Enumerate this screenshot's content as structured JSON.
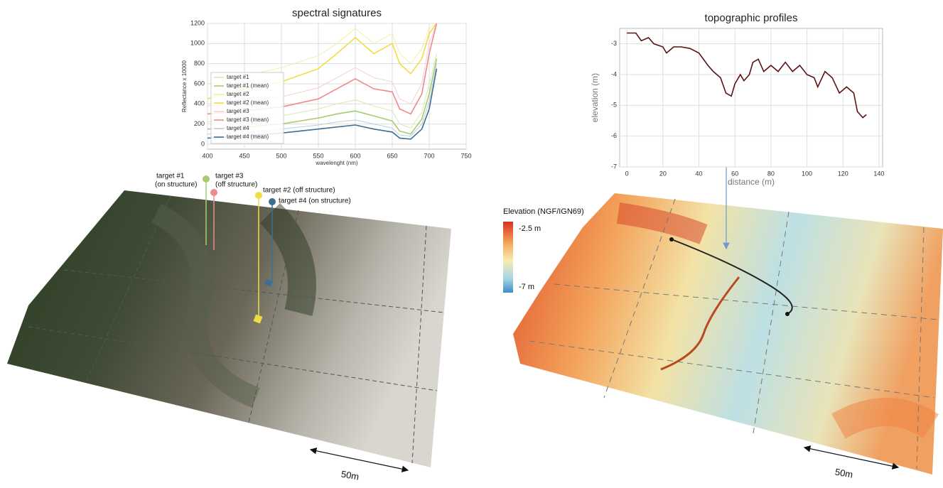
{
  "chart_data": [
    {
      "type": "line",
      "title": "spectral signatures",
      "x_label": "wavelenght (nm)",
      "y_label": "Reflectance x 10000",
      "x": [
        400,
        450,
        500,
        550,
        575,
        600,
        625,
        650,
        660,
        675,
        690,
        700,
        710
      ],
      "series": [
        {
          "name": "target #1",
          "color": "#d9e8b8",
          "values": [
            220,
            240,
            280,
            350,
            400,
            440,
            380,
            330,
            200,
            160,
            320,
            600,
            900
          ]
        },
        {
          "name": "target #1 (mean)",
          "color": "#a9cc6e",
          "values": [
            150,
            170,
            200,
            260,
            300,
            330,
            280,
            230,
            130,
            100,
            250,
            500,
            850
          ]
        },
        {
          "name": "target #2",
          "color": "#f6eca8",
          "values": [
            600,
            680,
            760,
            880,
            1000,
            1150,
            1000,
            1100,
            900,
            800,
            950,
            1150,
            1200
          ]
        },
        {
          "name": "target #2 (mean)",
          "color": "#f2dc45",
          "values": [
            450,
            550,
            620,
            750,
            900,
            1060,
            900,
            1000,
            800,
            700,
            850,
            1100,
            1200
          ]
        },
        {
          "name": "target #3",
          "color": "#f7cfcf",
          "values": [
            380,
            420,
            470,
            560,
            660,
            760,
            660,
            620,
            450,
            400,
            600,
            1000,
            1200
          ]
        },
        {
          "name": "target #3 (mean)",
          "color": "#f08a8a",
          "values": [
            300,
            330,
            370,
            450,
            550,
            650,
            550,
            520,
            350,
            300,
            500,
            900,
            1200
          ]
        },
        {
          "name": "target #4",
          "color": "#b9cfdf",
          "values": [
            100,
            120,
            150,
            190,
            220,
            240,
            200,
            160,
            90,
            80,
            200,
            420,
            800
          ]
        },
        {
          "name": "target #4 (mean)",
          "color": "#3d6f95",
          "values": [
            60,
            80,
            110,
            150,
            170,
            190,
            150,
            120,
            60,
            50,
            150,
            350,
            750
          ]
        }
      ],
      "xlim": [
        400,
        750
      ],
      "xticks": [
        400,
        450,
        500,
        550,
        600,
        650,
        700,
        750
      ],
      "ylim": [
        -50,
        1200
      ],
      "yticks": [
        0,
        200,
        400,
        600,
        800,
        1000,
        1200
      ],
      "grid": true,
      "legend": "lower left"
    },
    {
      "type": "line",
      "title": "topographic profiles",
      "x_label": "distance (m)",
      "y_label": "elevation (m)",
      "x": [
        0,
        5,
        8,
        12,
        15,
        20,
        22,
        26,
        30,
        35,
        40,
        45,
        48,
        52,
        55,
        58,
        60,
        63,
        65,
        68,
        70,
        73,
        76,
        80,
        84,
        88,
        92,
        96,
        100,
        104,
        106,
        110,
        114,
        118,
        122,
        126,
        128,
        131,
        133
      ],
      "series": [
        {
          "name": null,
          "color": "#5c1212",
          "values": [
            -2.65,
            -2.65,
            -2.9,
            -2.8,
            -3.0,
            -3.1,
            -3.3,
            -3.1,
            -3.1,
            -3.15,
            -3.3,
            -3.7,
            -3.9,
            -4.1,
            -4.6,
            -4.7,
            -4.3,
            -4.0,
            -4.2,
            -4.0,
            -3.6,
            -3.5,
            -3.9,
            -3.7,
            -3.9,
            -3.6,
            -3.9,
            -3.7,
            -4.0,
            -4.1,
            -4.4,
            -3.9,
            -4.1,
            -4.6,
            -4.4,
            -4.6,
            -5.2,
            -5.4,
            -5.3
          ]
        }
      ],
      "xlim": [
        -4,
        142
      ],
      "xticks": [
        0,
        20,
        40,
        60,
        80,
        100,
        120,
        140
      ],
      "ylim": [
        -7,
        -2.5
      ],
      "yticks": [
        -3,
        -4,
        -5,
        -6,
        -7
      ],
      "grid": true
    }
  ],
  "left_scene": {
    "labels": [
      "target #1",
      "(on structure)",
      "target #3",
      "(off structure)",
      "target #2 (off structure)",
      "target #4 (on structure)"
    ],
    "scale": "50m"
  },
  "right_scene": {
    "legend_title": "Elevation (NGF/IGN69)",
    "max_label": "-2.5 m",
    "min_label": "-7 m",
    "scale": "50m"
  }
}
